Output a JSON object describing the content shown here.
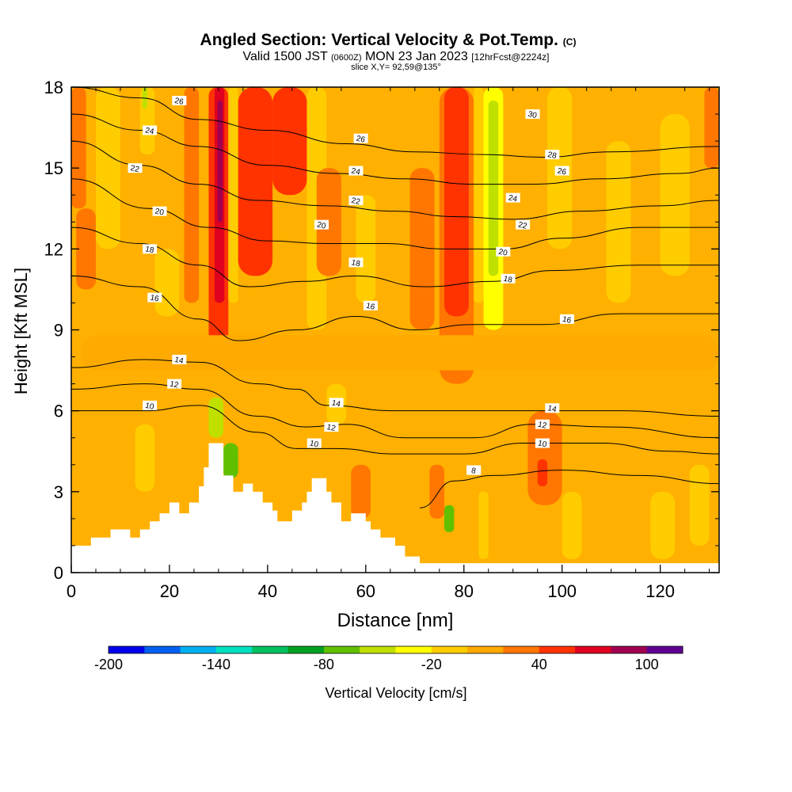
{
  "header": {
    "title_main": "Angled Section: Vertical Velocity & Pot.Temp.",
    "title_tag": "(C)",
    "valid_prefix": "Valid 1500 JST",
    "valid_utc": "(0600Z)",
    "valid_date": "MON 23 Jan 2023",
    "valid_fcst": "[12hrFcst@2224z]",
    "slice": "slice X,Y= 92,59@135°"
  },
  "chart_data": {
    "type": "heatmap",
    "xlabel": "Distance [nm]",
    "ylabel": "Height [Kft MSL]",
    "xlim": [
      0,
      132
    ],
    "ylim": [
      0,
      18
    ],
    "x_ticks": [
      "0",
      "20",
      "40",
      "60",
      "80",
      "100",
      "120"
    ],
    "y_ticks": [
      "0",
      "3",
      "6",
      "9",
      "12",
      "15",
      "18"
    ],
    "background_color": "#ffb000",
    "colorbar": {
      "label": "Vertical Velocity [cm/s]",
      "range": [
        -200,
        120
      ],
      "tick_labels": [
        "-200",
        "-140",
        "-80",
        "-20",
        "40",
        "100"
      ],
      "tick_values": [
        -200,
        -140,
        -80,
        -20,
        40,
        100
      ],
      "colors": [
        "#0000ee",
        "#0060f0",
        "#00b0f0",
        "#00e0c0",
        "#00c060",
        "#00a020",
        "#60c000",
        "#c0e000",
        "#ffff00",
        "#ffcc00",
        "#ffaa00",
        "#ff7700",
        "#ff3300",
        "#e00020",
        "#a00050",
        "#600090"
      ]
    },
    "terrain": [
      [
        0,
        1.0
      ],
      [
        4,
        1.0
      ],
      [
        4,
        1.3
      ],
      [
        8,
        1.3
      ],
      [
        8,
        1.6
      ],
      [
        12,
        1.6
      ],
      [
        12,
        1.3
      ],
      [
        14,
        1.3
      ],
      [
        14,
        1.6
      ],
      [
        16,
        1.6
      ],
      [
        16,
        1.9
      ],
      [
        18,
        1.9
      ],
      [
        18,
        2.2
      ],
      [
        20,
        2.2
      ],
      [
        20,
        2.6
      ],
      [
        22,
        2.6
      ],
      [
        22,
        2.2
      ],
      [
        24,
        2.2
      ],
      [
        24,
        2.6
      ],
      [
        26,
        2.6
      ],
      [
        26,
        3.2
      ],
      [
        27,
        3.2
      ],
      [
        27,
        3.9
      ],
      [
        28,
        3.9
      ],
      [
        28,
        4.8
      ],
      [
        31,
        4.8
      ],
      [
        31,
        3.6
      ],
      [
        33,
        3.6
      ],
      [
        33,
        3.0
      ],
      [
        35,
        3.0
      ],
      [
        35,
        3.3
      ],
      [
        37,
        3.3
      ],
      [
        37,
        3.0
      ],
      [
        39,
        3.0
      ],
      [
        39,
        2.6
      ],
      [
        41,
        2.6
      ],
      [
        41,
        2.3
      ],
      [
        42,
        2.3
      ],
      [
        42,
        1.9
      ],
      [
        45,
        1.9
      ],
      [
        45,
        2.3
      ],
      [
        47,
        2.3
      ],
      [
        47,
        2.6
      ],
      [
        48,
        2.6
      ],
      [
        48,
        3.0
      ],
      [
        49,
        3.0
      ],
      [
        49,
        3.5
      ],
      [
        52,
        3.5
      ],
      [
        52,
        3.0
      ],
      [
        53,
        3.0
      ],
      [
        53,
        2.6
      ],
      [
        55,
        2.6
      ],
      [
        55,
        1.9
      ],
      [
        57,
        1.9
      ],
      [
        57,
        2.2
      ],
      [
        60,
        2.2
      ],
      [
        60,
        1.9
      ],
      [
        61,
        1.9
      ],
      [
        61,
        1.6
      ],
      [
        63,
        1.6
      ],
      [
        63,
        1.3
      ],
      [
        66,
        1.3
      ],
      [
        66,
        1.0
      ],
      [
        68,
        1.0
      ],
      [
        68,
        0.6
      ],
      [
        71,
        0.6
      ],
      [
        71,
        0.35
      ],
      [
        132,
        0.35
      ]
    ],
    "velocity_cells": [
      {
        "x0": 0,
        "x1": 3,
        "y0": 13.5,
        "y1": 18,
        "value": 35
      },
      {
        "x0": 1,
        "x1": 5,
        "y0": 10.5,
        "y1": 13.5,
        "value": 25
      },
      {
        "x0": 5,
        "x1": 10,
        "y0": 12,
        "y1": 18,
        "value": -15
      },
      {
        "x0": 14,
        "x1": 17,
        "y0": 15.5,
        "y1": 18,
        "value": -20
      },
      {
        "x0": 14.5,
        "x1": 15.5,
        "y0": 17.2,
        "y1": 18,
        "value": -60
      },
      {
        "x0": 17,
        "x1": 22,
        "y0": 9.5,
        "y1": 12,
        "value": -10
      },
      {
        "x0": 23,
        "x1": 26,
        "y0": 10,
        "y1": 18,
        "value": 25
      },
      {
        "x0": 28,
        "x1": 32,
        "y0": 8.5,
        "y1": 18,
        "value": 50
      },
      {
        "x0": 29.2,
        "x1": 31.2,
        "y0": 10,
        "y1": 18,
        "value": 75
      },
      {
        "x0": 29.8,
        "x1": 30.8,
        "y0": 13,
        "y1": 17.5,
        "value": 95
      },
      {
        "x0": 32,
        "x1": 34,
        "y0": 10,
        "y1": 18,
        "value": -10
      },
      {
        "x0": 34,
        "x1": 41,
        "y0": 11,
        "y1": 18,
        "value": 45
      },
      {
        "x0": 41,
        "x1": 48,
        "y0": 14,
        "y1": 18,
        "value": 40
      },
      {
        "x0": 48,
        "x1": 52,
        "y0": 9,
        "y1": 18,
        "value": -10
      },
      {
        "x0": 50,
        "x1": 55,
        "y0": 11,
        "y1": 15,
        "value": 25
      },
      {
        "x0": 58,
        "x1": 62,
        "y0": 10,
        "y1": 14,
        "value": -10
      },
      {
        "x0": 69,
        "x1": 74,
        "y0": 9,
        "y1": 15,
        "value": 25
      },
      {
        "x0": 75,
        "x1": 82,
        "y0": 7,
        "y1": 18,
        "value": 30
      },
      {
        "x0": 76,
        "x1": 81,
        "y0": 9.5,
        "y1": 18,
        "value": 50
      },
      {
        "x0": 82,
        "x1": 84,
        "y0": 10,
        "y1": 18,
        "value": -15
      },
      {
        "x0": 84,
        "x1": 88,
        "y0": 9,
        "y1": 18,
        "value": -25
      },
      {
        "x0": 85,
        "x1": 87,
        "y0": 11,
        "y1": 17.5,
        "value": -60
      },
      {
        "x0": 97,
        "x1": 102,
        "y0": 12,
        "y1": 18,
        "value": -10
      },
      {
        "x0": 109,
        "x1": 114,
        "y0": 10,
        "y1": 16,
        "value": -12
      },
      {
        "x0": 120,
        "x1": 126,
        "y0": 11,
        "y1": 17,
        "value": -10
      },
      {
        "x0": 129,
        "x1": 132,
        "y0": 15,
        "y1": 18,
        "value": 25
      },
      {
        "x0": 2,
        "x1": 132,
        "y0": 7.5,
        "y1": 8.8,
        "value": 5
      },
      {
        "x0": 28,
        "x1": 31,
        "y0": 5,
        "y1": 6.5,
        "value": -60
      },
      {
        "x0": 31,
        "x1": 34,
        "y0": 3.5,
        "y1": 4.8,
        "value": -80
      },
      {
        "x0": 52,
        "x1": 56,
        "y0": 5.5,
        "y1": 7,
        "value": -10
      },
      {
        "x0": 13,
        "x1": 17,
        "y0": 3,
        "y1": 5.5,
        "value": -10
      },
      {
        "x0": 57,
        "x1": 61,
        "y0": 2,
        "y1": 4,
        "value": 25
      },
      {
        "x0": 73,
        "x1": 76,
        "y0": 2,
        "y1": 4,
        "value": 25
      },
      {
        "x0": 76,
        "x1": 78,
        "y0": 1.5,
        "y1": 2.5,
        "value": -70
      },
      {
        "x0": 83,
        "x1": 85,
        "y0": 0.5,
        "y1": 3,
        "value": -15
      },
      {
        "x0": 93,
        "x1": 100,
        "y0": 2.5,
        "y1": 6,
        "value": 30
      },
      {
        "x0": 95,
        "x1": 97,
        "y0": 3.2,
        "y1": 4.2,
        "value": 50
      },
      {
        "x0": 100,
        "x1": 104,
        "y0": 0.5,
        "y1": 3,
        "value": -12
      },
      {
        "x0": 118,
        "x1": 123,
        "y0": 0.5,
        "y1": 3,
        "value": -12
      },
      {
        "x0": 126,
        "x1": 130,
        "y0": 1,
        "y1": 4,
        "value": -10
      }
    ],
    "isentropes": [
      {
        "label": "8",
        "points": [
          [
            71,
            2.4
          ],
          [
            78,
            3.4
          ],
          [
            86,
            3.6
          ],
          [
            100,
            3.8
          ],
          [
            116,
            3.6
          ],
          [
            132,
            3.3
          ]
        ],
        "label_at": [
          82,
          3.8
        ]
      },
      {
        "label": "10",
        "points": [
          [
            0,
            6.0
          ],
          [
            15,
            6.0
          ],
          [
            26,
            6.2
          ],
          [
            38,
            5.2
          ],
          [
            46,
            4.6
          ],
          [
            54,
            4.6
          ],
          [
            66,
            4.4
          ],
          [
            80,
            4.4
          ],
          [
            92,
            4.8
          ],
          [
            108,
            4.8
          ],
          [
            122,
            4.5
          ],
          [
            132,
            4.4
          ]
        ],
        "label_at": [
          16,
          6.2
        ]
      },
      {
        "label": "12",
        "points": [
          [
            0,
            6.8
          ],
          [
            15,
            7.0
          ],
          [
            26,
            6.8
          ],
          [
            38,
            5.8
          ],
          [
            48,
            5.4
          ],
          [
            56,
            5.5
          ],
          [
            68,
            5.0
          ],
          [
            82,
            5.0
          ],
          [
            94,
            5.5
          ],
          [
            110,
            5.4
          ],
          [
            132,
            5.0
          ]
        ],
        "label_at": [
          21,
          7.0
        ]
      },
      {
        "label": "14",
        "points": [
          [
            0,
            7.6
          ],
          [
            15,
            7.9
          ],
          [
            26,
            7.8
          ],
          [
            38,
            7.0
          ],
          [
            46,
            6.8
          ],
          [
            52,
            6.2
          ],
          [
            66,
            6.0
          ],
          [
            80,
            6.0
          ],
          [
            94,
            6.0
          ],
          [
            112,
            6.0
          ],
          [
            132,
            5.8
          ]
        ],
        "label_at": [
          22,
          7.9
        ]
      },
      {
        "label": "16",
        "points": [
          [
            0,
            11.0
          ],
          [
            14,
            10.6
          ],
          [
            26,
            9.4
          ],
          [
            34,
            8.6
          ],
          [
            46,
            9.0
          ],
          [
            58,
            9.5
          ],
          [
            70,
            9.0
          ],
          [
            82,
            9.2
          ],
          [
            96,
            9.2
          ],
          [
            112,
            9.6
          ],
          [
            132,
            9.6
          ]
        ],
        "label_at": [
          17,
          10.2
        ]
      },
      {
        "label": "18",
        "points": [
          [
            0,
            12.8
          ],
          [
            14,
            12.2
          ],
          [
            26,
            11.4
          ],
          [
            36,
            10.6
          ],
          [
            48,
            10.8
          ],
          [
            58,
            11.0
          ],
          [
            72,
            10.6
          ],
          [
            86,
            10.8
          ],
          [
            98,
            11.2
          ],
          [
            116,
            11.4
          ],
          [
            132,
            11.4
          ]
        ],
        "label_at": [
          16,
          12.0
        ]
      },
      {
        "label": "20",
        "points": [
          [
            0,
            14.6
          ],
          [
            16,
            13.5
          ],
          [
            28,
            12.8
          ],
          [
            40,
            12.3
          ],
          [
            52,
            12.2
          ],
          [
            64,
            12.2
          ],
          [
            76,
            12.0
          ],
          [
            88,
            12.0
          ],
          [
            100,
            12.4
          ],
          [
            116,
            12.8
          ],
          [
            132,
            12.8
          ]
        ],
        "label_at": [
          18,
          13.4
        ]
      },
      {
        "label": "22",
        "points": [
          [
            0,
            16.0
          ],
          [
            14,
            15.1
          ],
          [
            26,
            14.4
          ],
          [
            38,
            13.8
          ],
          [
            52,
            13.6
          ],
          [
            66,
            13.4
          ],
          [
            78,
            13.2
          ],
          [
            90,
            13.1
          ],
          [
            104,
            13.4
          ],
          [
            120,
            13.6
          ],
          [
            132,
            13.8
          ]
        ],
        "label_at": [
          13,
          15.0
        ]
      },
      {
        "label": "24",
        "points": [
          [
            0,
            17.0
          ],
          [
            14,
            16.4
          ],
          [
            26,
            15.8
          ],
          [
            40,
            15.1
          ],
          [
            54,
            14.8
          ],
          [
            68,
            14.6
          ],
          [
            82,
            14.4
          ],
          [
            94,
            14.4
          ],
          [
            108,
            14.6
          ],
          [
            124,
            14.8
          ],
          [
            132,
            15.0
          ]
        ],
        "label_at": [
          16,
          16.4
        ]
      },
      {
        "label": "26",
        "points": [
          [
            0,
            18.0
          ],
          [
            14,
            17.6
          ],
          [
            26,
            16.8
          ],
          [
            40,
            16.4
          ],
          [
            56,
            15.9
          ],
          [
            70,
            15.6
          ],
          [
            84,
            15.5
          ],
          [
            96,
            15.4
          ],
          [
            110,
            15.6
          ],
          [
            132,
            15.8
          ]
        ],
        "label_at": [
          22,
          17.5
        ]
      }
    ],
    "isentrope_labels": [
      {
        "label": "10",
        "at": [
          49.5,
          4.8
        ]
      },
      {
        "label": "12",
        "at": [
          53,
          5.4
        ]
      },
      {
        "label": "14",
        "at": [
          54,
          6.3
        ]
      },
      {
        "label": "16",
        "at": [
          61,
          9.9
        ]
      },
      {
        "label": "18",
        "at": [
          58,
          11.5
        ]
      },
      {
        "label": "20",
        "at": [
          51,
          12.9
        ]
      },
      {
        "label": "22",
        "at": [
          58,
          13.8
        ]
      },
      {
        "label": "24",
        "at": [
          58,
          14.9
        ]
      },
      {
        "label": "26",
        "at": [
          59,
          16.1
        ]
      },
      {
        "label": "8",
        "at": [
          82,
          3.8
        ]
      },
      {
        "label": "10",
        "at": [
          96,
          4.8
        ]
      },
      {
        "label": "12",
        "at": [
          96,
          5.5
        ]
      },
      {
        "label": "14",
        "at": [
          98,
          6.1
        ]
      },
      {
        "label": "16",
        "at": [
          101,
          9.4
        ]
      },
      {
        "label": "18",
        "at": [
          89,
          10.9
        ]
      },
      {
        "label": "20",
        "at": [
          88,
          11.9
        ]
      },
      {
        "label": "22",
        "at": [
          92,
          12.9
        ]
      },
      {
        "label": "24",
        "at": [
          90,
          13.9
        ]
      },
      {
        "label": "26",
        "at": [
          100,
          14.9
        ]
      },
      {
        "label": "28",
        "at": [
          98,
          15.5
        ]
      },
      {
        "label": "30",
        "at": [
          94,
          17.0
        ]
      }
    ]
  }
}
